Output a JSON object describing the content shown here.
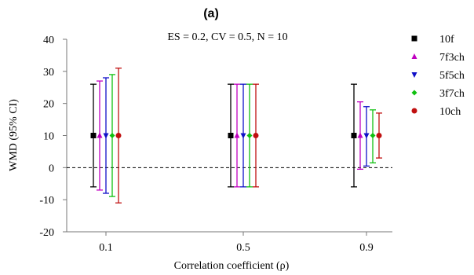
{
  "chart_data": {
    "type": "scatter",
    "panel_label": "(a)",
    "subtitle": "ES = 0.2, CV = 0.5, N = 10",
    "xlabel": "Correlation coefficient (ρ)",
    "ylabel": "WMD (95% CI)",
    "categories": [
      "0.1",
      "0.5",
      "0.9"
    ],
    "ylim": [
      -20,
      40
    ],
    "yticks": [
      -20,
      -10,
      0,
      10,
      20,
      30,
      40
    ],
    "reference_line": 0,
    "legend_position": "right",
    "series": [
      {
        "name": "10f",
        "color": "#000000",
        "marker": "square",
        "values": [
          10,
          10,
          10
        ],
        "lower": [
          -6,
          -6,
          -6
        ],
        "upper": [
          26,
          26,
          26
        ]
      },
      {
        "name": "7f3ch",
        "color": "#c000c0",
        "marker": "triangle-up",
        "values": [
          10,
          10,
          10
        ],
        "lower": [
          -7,
          -6,
          -0.5
        ],
        "upper": [
          27,
          26,
          20.5
        ]
      },
      {
        "name": "5f5ch",
        "color": "#1010c8",
        "marker": "triangle-down",
        "values": [
          10,
          10,
          10
        ],
        "lower": [
          -8,
          -6,
          0.5
        ],
        "upper": [
          28,
          26,
          19
        ]
      },
      {
        "name": "3f7ch",
        "color": "#10c010",
        "marker": "diamond",
        "values": [
          10,
          10,
          10
        ],
        "lower": [
          -9,
          -6,
          1.5
        ],
        "upper": [
          29,
          26,
          18
        ]
      },
      {
        "name": "10ch",
        "color": "#c01010",
        "marker": "circle",
        "values": [
          10,
          10,
          10
        ],
        "lower": [
          -11,
          -6,
          3
        ],
        "upper": [
          31,
          26,
          17
        ]
      }
    ]
  }
}
